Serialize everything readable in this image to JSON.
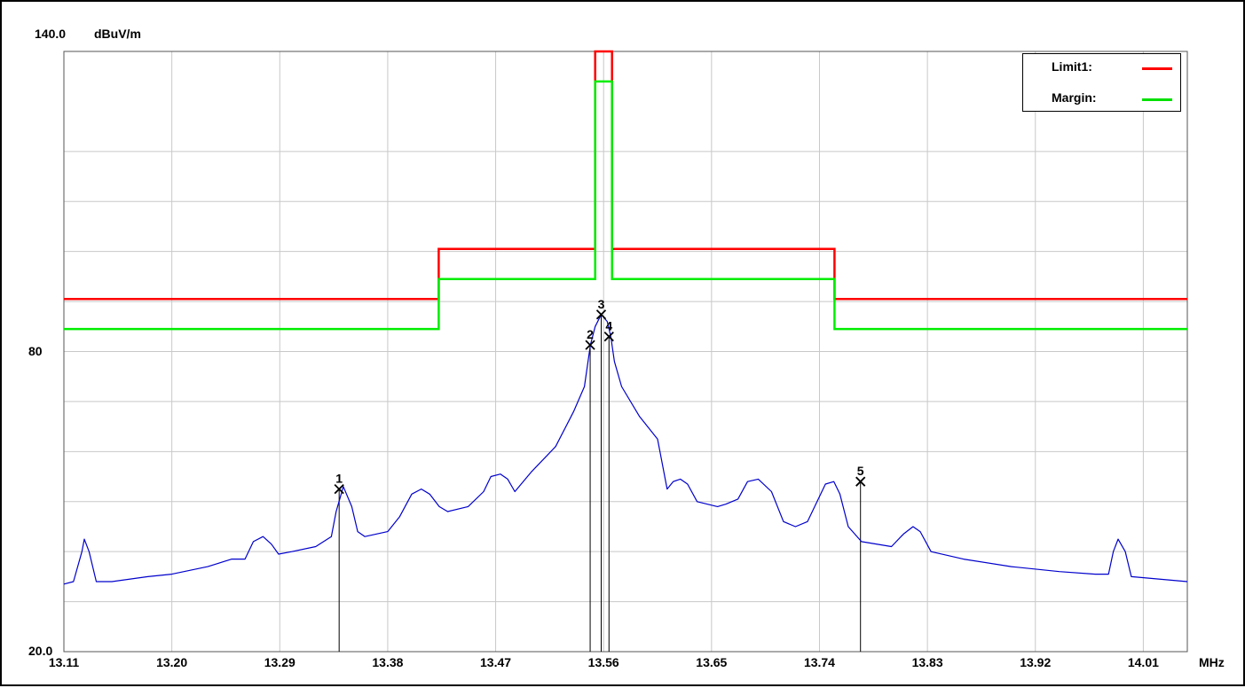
{
  "chart_data": {
    "type": "line",
    "y_top_label": "140.0",
    "y_unit": "dBuV/m",
    "x_unit": "MHz",
    "ylim": [
      20,
      140
    ],
    "xlim": [
      13.11,
      14.0467
    ],
    "y_tick_labels": [
      {
        "value": 140,
        "text": "140.0"
      },
      {
        "value": 80,
        "text": "80"
      },
      {
        "value": 20,
        "text": "20.0"
      }
    ],
    "y_grid": [
      120,
      110,
      100,
      90,
      80,
      70,
      60,
      50,
      40,
      30
    ],
    "x_tick_labels": [
      "13.11",
      "13.20",
      "13.29",
      "13.38",
      "13.47",
      "13.56",
      "13.65",
      "13.74",
      "13.83",
      "13.92",
      "14.01"
    ],
    "x_ticks": [
      13.11,
      13.2,
      13.29,
      13.38,
      13.47,
      13.56,
      13.65,
      13.74,
      13.83,
      13.92,
      14.01
    ],
    "grid": true,
    "legend_position": "top-right",
    "legend": [
      {
        "name": "Limit1:",
        "color": "#ff0000"
      },
      {
        "name": "Margin:",
        "color": "#00ee00"
      }
    ],
    "limit_line": {
      "color": "#ff0000",
      "points": [
        [
          13.11,
          90.5
        ],
        [
          13.4225,
          90.5
        ],
        [
          13.4225,
          100.5
        ],
        [
          13.553,
          100.5
        ],
        [
          13.553,
          140
        ],
        [
          13.567,
          140
        ],
        [
          13.567,
          100.5
        ],
        [
          13.7525,
          100.5
        ],
        [
          13.7525,
          90.5
        ],
        [
          14.0467,
          90.5
        ]
      ]
    },
    "margin_line": {
      "color": "#00ee00",
      "points": [
        [
          13.11,
          84.5
        ],
        [
          13.4225,
          84.5
        ],
        [
          13.4225,
          94.5
        ],
        [
          13.553,
          94.5
        ],
        [
          13.553,
          134
        ],
        [
          13.567,
          134
        ],
        [
          13.567,
          94.5
        ],
        [
          13.7525,
          94.5
        ],
        [
          13.7525,
          84.5
        ],
        [
          14.0467,
          84.5
        ]
      ]
    },
    "trace": {
      "color": "#0000cc",
      "points": [
        [
          13.11,
          33.5
        ],
        [
          13.118,
          34
        ],
        [
          13.125,
          40
        ],
        [
          13.127,
          42.5
        ],
        [
          13.131,
          40
        ],
        [
          13.137,
          34
        ],
        [
          13.15,
          34
        ],
        [
          13.18,
          35
        ],
        [
          13.2,
          35.5
        ],
        [
          13.23,
          37
        ],
        [
          13.25,
          38.5
        ],
        [
          13.261,
          38.5
        ],
        [
          13.268,
          42
        ],
        [
          13.276,
          43
        ],
        [
          13.283,
          41.5
        ],
        [
          13.289,
          39.5
        ],
        [
          13.3,
          40
        ],
        [
          13.32,
          41
        ],
        [
          13.333,
          43
        ],
        [
          13.337,
          48
        ],
        [
          13.343,
          53
        ],
        [
          13.35,
          49
        ],
        [
          13.355,
          44
        ],
        [
          13.361,
          43
        ],
        [
          13.38,
          44
        ],
        [
          13.39,
          47
        ],
        [
          13.4,
          51.5
        ],
        [
          13.408,
          52.5
        ],
        [
          13.415,
          51.5
        ],
        [
          13.423,
          49
        ],
        [
          13.43,
          48
        ],
        [
          13.447,
          49
        ],
        [
          13.46,
          52
        ],
        [
          13.466,
          55
        ],
        [
          13.474,
          55.5
        ],
        [
          13.48,
          54.5
        ],
        [
          13.486,
          52
        ],
        [
          13.5,
          56
        ],
        [
          13.52,
          61
        ],
        [
          13.535,
          68
        ],
        [
          13.544,
          73
        ],
        [
          13.549,
          81.3
        ],
        [
          13.553,
          85
        ],
        [
          13.558,
          87.4
        ],
        [
          13.563,
          86
        ],
        [
          13.566,
          83
        ],
        [
          13.569,
          78
        ],
        [
          13.575,
          73
        ],
        [
          13.59,
          67
        ],
        [
          13.605,
          62.5
        ],
        [
          13.613,
          52.5
        ],
        [
          13.618,
          54
        ],
        [
          13.624,
          54.5
        ],
        [
          13.63,
          53.5
        ],
        [
          13.638,
          50
        ],
        [
          13.655,
          49
        ],
        [
          13.662,
          49.5
        ],
        [
          13.672,
          50.5
        ],
        [
          13.68,
          54
        ],
        [
          13.689,
          54.5
        ],
        [
          13.7,
          52
        ],
        [
          13.71,
          46
        ],
        [
          13.72,
          45
        ],
        [
          13.73,
          46
        ],
        [
          13.745,
          53.5
        ],
        [
          13.752,
          54
        ],
        [
          13.757,
          51.5
        ],
        [
          13.764,
          45
        ],
        [
          13.775,
          42
        ],
        [
          13.8,
          41
        ],
        [
          13.81,
          43.5
        ],
        [
          13.818,
          45
        ],
        [
          13.824,
          44
        ],
        [
          13.833,
          40
        ],
        [
          13.86,
          38.5
        ],
        [
          13.9,
          37
        ],
        [
          13.94,
          36
        ],
        [
          13.97,
          35.5
        ],
        [
          13.981,
          35.5
        ],
        [
          13.985,
          40
        ],
        [
          13.989,
          42.5
        ],
        [
          13.995,
          40
        ],
        [
          14.0,
          35
        ],
        [
          14.0467,
          34
        ]
      ]
    },
    "markers": [
      {
        "label": "1",
        "x": 13.3395,
        "y": 52.5
      },
      {
        "label": "2",
        "x": 13.5488,
        "y": 81.3
      },
      {
        "label": "3",
        "x": 13.558,
        "y": 87.4
      },
      {
        "label": "4",
        "x": 13.5645,
        "y": 83.0
      },
      {
        "label": "5",
        "x": 13.7742,
        "y": 54.0
      }
    ]
  }
}
